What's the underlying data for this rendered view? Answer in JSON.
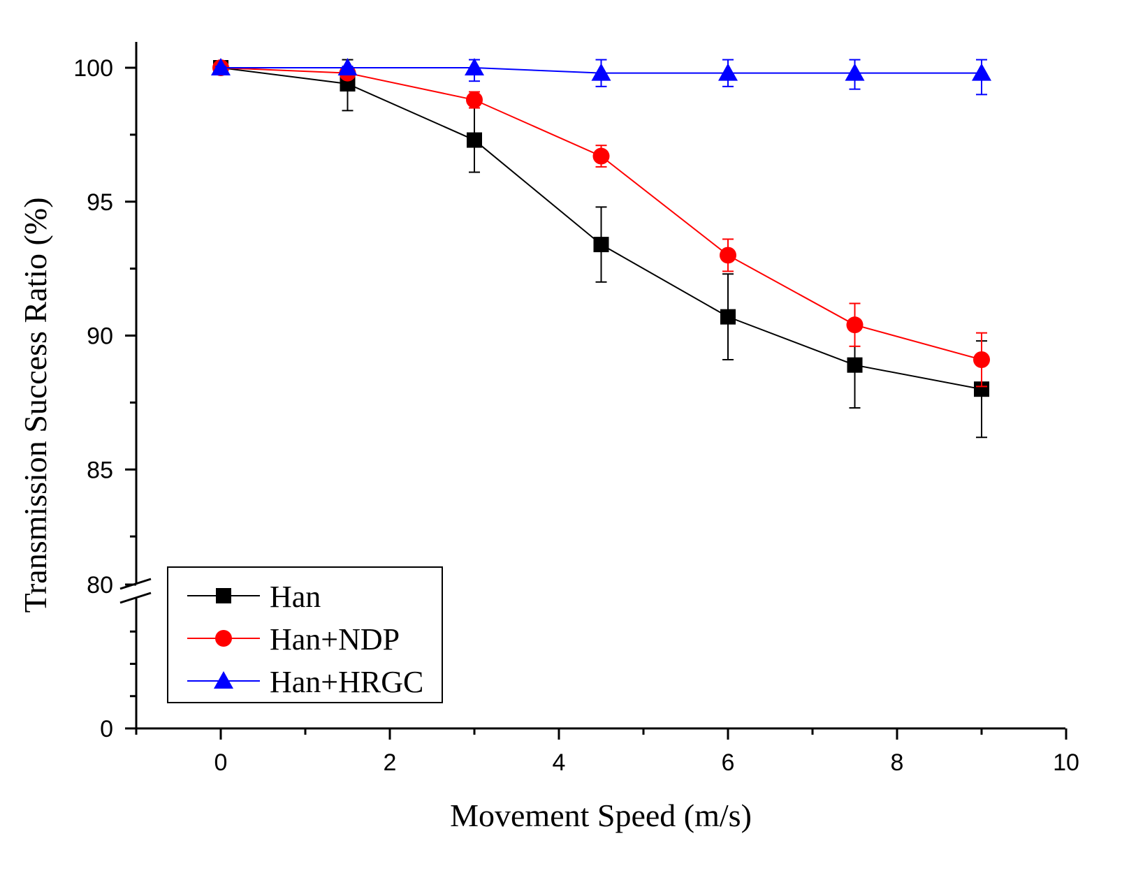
{
  "chart_data": {
    "type": "line",
    "title": "",
    "xlabel": "Movement Speed (m/s)",
    "ylabel": "Transmission Success Ratio (%)",
    "xlim": [
      -1,
      10
    ],
    "x_ticks": [
      0,
      2,
      4,
      6,
      8,
      10
    ],
    "y_ticks": [
      100,
      95,
      90,
      85,
      80,
      0
    ],
    "y_axis_break": {
      "lower_range": [
        0,
        80
      ],
      "upper_range": [
        80,
        101
      ]
    },
    "legend_position": "bottom-left",
    "x": [
      0,
      1.5,
      3,
      4.5,
      6,
      7.5,
      9
    ],
    "series": [
      {
        "name": "Han",
        "color": "#000000",
        "marker": "square",
        "values": [
          100,
          99.4,
          97.3,
          93.4,
          90.7,
          88.9,
          88.0
        ],
        "errors": [
          0.1,
          1.0,
          1.2,
          1.4,
          1.6,
          1.6,
          1.8
        ]
      },
      {
        "name": "Han+NDP",
        "color": "#ff0000",
        "marker": "circle",
        "values": [
          100,
          99.8,
          98.8,
          96.7,
          93.0,
          90.4,
          89.1
        ],
        "errors": [
          0.05,
          0.1,
          0.3,
          0.4,
          0.6,
          0.8,
          1.0
        ]
      },
      {
        "name": "Han+HRGC",
        "color": "#0000ff",
        "marker": "triangle",
        "values": [
          100,
          100,
          100,
          99.8,
          99.8,
          99.8,
          99.8
        ],
        "errors": [
          0.05,
          0.05,
          0.5,
          0.5,
          0.5,
          0.6,
          0.8
        ]
      }
    ]
  }
}
